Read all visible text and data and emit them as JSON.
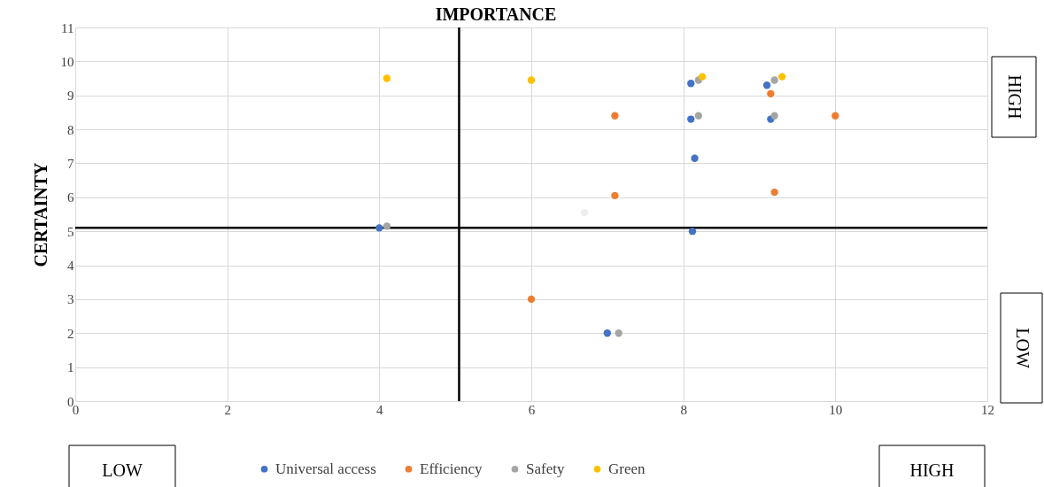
{
  "chart_data": {
    "type": "scatter",
    "title": "IMPORTANCE",
    "ylabel": "CERTAINTY",
    "xlim": [
      0,
      12
    ],
    "xticks": [
      0,
      2,
      4,
      6,
      8,
      10,
      12
    ],
    "ylim": [
      0,
      11
    ],
    "yticks": [
      0,
      1,
      2,
      3,
      4,
      5,
      6,
      7,
      8,
      9,
      10,
      11
    ],
    "grid": true,
    "legend": "bottom",
    "marker": "circle",
    "ref_lines": [
      {
        "axis": "x",
        "value": 5.05,
        "color": "#000000"
      },
      {
        "axis": "y",
        "value": 5.1,
        "color": "#000000"
      }
    ],
    "annotations": [
      "HIGH",
      "LOW",
      "LOW",
      "HIGH"
    ],
    "series": [
      {
        "name": "Universal access",
        "color": "#4472c4",
        "x": [
          4.0,
          8.1,
          9.1,
          8.1,
          9.15,
          8.15,
          8.12,
          7.0
        ],
        "values": [
          5.1,
          9.35,
          9.3,
          8.3,
          8.3,
          7.15,
          5.0,
          2.0
        ]
      },
      {
        "name": "Efficiency",
        "color": "#ed7d31",
        "x": [
          7.1,
          9.15,
          10.0,
          7.1,
          9.2,
          6.0
        ],
        "values": [
          8.4,
          9.05,
          8.4,
          6.05,
          6.15,
          3.0
        ]
      },
      {
        "name": "Safety",
        "color": "#a5a5a5",
        "x": [
          4.1,
          8.2,
          9.2,
          8.2,
          9.2,
          7.15
        ],
        "values": [
          5.15,
          9.45,
          9.45,
          8.4,
          8.4,
          2.0
        ]
      },
      {
        "name": "Green",
        "color": "#ffc000",
        "x": [
          4.1,
          6.0,
          8.25,
          9.3
        ],
        "values": [
          9.5,
          9.45,
          9.55,
          9.55
        ]
      },
      {
        "color": "#eeeeee",
        "x": [
          6.7
        ],
        "values": [
          5.55
        ]
      }
    ]
  }
}
